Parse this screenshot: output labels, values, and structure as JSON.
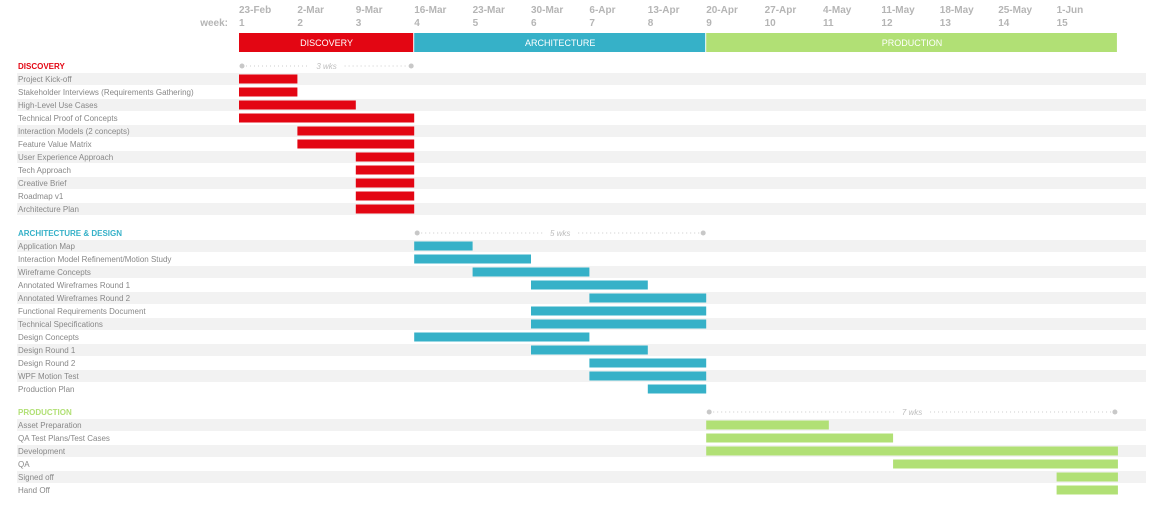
{
  "chart_data": {
    "type": "gantt",
    "week_word": "week:",
    "weeks": [
      {
        "date": "23-Feb",
        "num": "1"
      },
      {
        "date": "2-Mar",
        "num": "2"
      },
      {
        "date": "9-Mar",
        "num": "3"
      },
      {
        "date": "16-Mar",
        "num": "4"
      },
      {
        "date": "23-Mar",
        "num": "5"
      },
      {
        "date": "30-Mar",
        "num": "6"
      },
      {
        "date": "6-Apr",
        "num": "7"
      },
      {
        "date": "13-Apr",
        "num": "8"
      },
      {
        "date": "20-Apr",
        "num": "9"
      },
      {
        "date": "27-Apr",
        "num": "10"
      },
      {
        "date": "4-May",
        "num": "11"
      },
      {
        "date": "11-May",
        "num": "12"
      },
      {
        "date": "18-May",
        "num": "13"
      },
      {
        "date": "25-May",
        "num": "14"
      },
      {
        "date": "1-Jun",
        "num": "15"
      }
    ],
    "x_range_weeks": [
      1,
      16.05
    ],
    "phases": [
      {
        "label": "DISCOVERY",
        "start_week": 1,
        "end_week": 4,
        "color": "#e30613"
      },
      {
        "label": "ARCHITECTURE",
        "start_week": 4,
        "end_week": 9,
        "color": "#36b1c8"
      },
      {
        "label": "PRODUCTION",
        "start_week": 9,
        "end_week": 16.05,
        "color": "#b1e075"
      }
    ],
    "sections": [
      {
        "title": "DISCOVERY",
        "color": "#e30613",
        "duration": {
          "label": "3 wks",
          "start_week": 1,
          "end_week": 4
        },
        "tasks": [
          {
            "name": "Project Kick-off",
            "start_week": 1,
            "end_week": 2
          },
          {
            "name": "Stakeholder Interviews (Requirements Gathering)",
            "start_week": 1,
            "end_week": 2
          },
          {
            "name": "High-Level Use Cases",
            "start_week": 1,
            "end_week": 3
          },
          {
            "name": "Technical Proof of Concepts",
            "start_week": 1,
            "end_week": 4
          },
          {
            "name": "Interaction Models (2 concepts)",
            "start_week": 2,
            "end_week": 4
          },
          {
            "name": "Feature Value Matrix",
            "start_week": 2,
            "end_week": 4
          },
          {
            "name": "User Experience Approach",
            "start_week": 3,
            "end_week": 4
          },
          {
            "name": "Tech Approach",
            "start_week": 3,
            "end_week": 4
          },
          {
            "name": "Creative Brief",
            "start_week": 3,
            "end_week": 4
          },
          {
            "name": "Roadmap v1",
            "start_week": 3,
            "end_week": 4
          },
          {
            "name": "Architecture Plan",
            "start_week": 3,
            "end_week": 4
          }
        ]
      },
      {
        "title": "ARCHITECTURE & DESIGN",
        "color": "#36b1c8",
        "duration": {
          "label": "5 wks",
          "start_week": 4,
          "end_week": 9
        },
        "tasks": [
          {
            "name": "Application Map",
            "start_week": 4,
            "end_week": 5
          },
          {
            "name": "Interaction Model Refinement/Motion Study",
            "start_week": 4,
            "end_week": 6
          },
          {
            "name": "Wireframe Concepts",
            "start_week": 5,
            "end_week": 7
          },
          {
            "name": "Annotated Wireframes Round 1",
            "start_week": 6,
            "end_week": 8
          },
          {
            "name": "Annotated Wireframes Round 2",
            "start_week": 7,
            "end_week": 9
          },
          {
            "name": "Functional Requirements Document",
            "start_week": 6,
            "end_week": 9
          },
          {
            "name": "Technical Specifications",
            "start_week": 6,
            "end_week": 9
          },
          {
            "name": "Design Concepts",
            "start_week": 4,
            "end_week": 7
          },
          {
            "name": "Design Round 1",
            "start_week": 6,
            "end_week": 8
          },
          {
            "name": "Design Round 2",
            "start_week": 7,
            "end_week": 9
          },
          {
            "name": "WPF Motion Test",
            "start_week": 7,
            "end_week": 9
          },
          {
            "name": "Production Plan",
            "start_week": 8,
            "end_week": 9
          }
        ]
      },
      {
        "title": "PRODUCTION",
        "color": "#b1e075",
        "duration": {
          "label": "7 wks",
          "start_week": 9,
          "end_week": 16.05
        },
        "tasks": [
          {
            "name": "Asset Preparation",
            "start_week": 9,
            "end_week": 11.1
          },
          {
            "name": "QA Test Plans/Test Cases",
            "start_week": 9,
            "end_week": 12.2
          },
          {
            "name": "Development",
            "start_week": 9,
            "end_week": 16.05
          },
          {
            "name": "QA",
            "start_week": 12.2,
            "end_week": 16.05
          },
          {
            "name": "Signed off",
            "start_week": 15,
            "end_week": 16.05
          },
          {
            "name": "Hand Off",
            "start_week": 15,
            "end_week": 16.05
          }
        ]
      }
    ]
  }
}
